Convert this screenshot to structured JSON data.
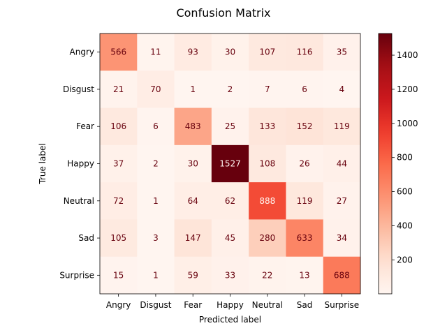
{
  "chart_data": {
    "type": "heatmap",
    "title": "Confusion Matrix",
    "xlabel": "Predicted label",
    "ylabel": "True label",
    "x_categories": [
      "Angry",
      "Disgust",
      "Fear",
      "Happy",
      "Neutral",
      "Sad",
      "Surprise"
    ],
    "y_categories": [
      "Angry",
      "Disgust",
      "Fear",
      "Happy",
      "Neutral",
      "Sad",
      "Surprise"
    ],
    "values": [
      [
        566,
        11,
        93,
        30,
        107,
        116,
        35
      ],
      [
        21,
        70,
        1,
        2,
        7,
        6,
        4
      ],
      [
        106,
        6,
        483,
        25,
        133,
        152,
        119
      ],
      [
        37,
        2,
        30,
        1527,
        108,
        26,
        44
      ],
      [
        72,
        1,
        64,
        62,
        888,
        119,
        27
      ],
      [
        105,
        3,
        147,
        45,
        280,
        633,
        34
      ],
      [
        15,
        1,
        59,
        33,
        22,
        13,
        688
      ]
    ],
    "colormap": "Reds",
    "colorbar": {
      "range": [
        1,
        1527
      ],
      "ticks": [
        200,
        400,
        600,
        800,
        1000,
        1200,
        1400
      ]
    }
  }
}
